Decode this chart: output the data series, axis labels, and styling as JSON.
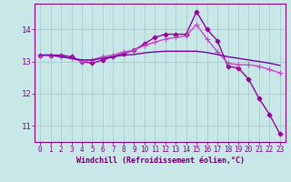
{
  "xlabel": "Windchill (Refroidissement éolien,°C)",
  "x_values": [
    0,
    1,
    2,
    3,
    4,
    5,
    6,
    7,
    8,
    9,
    10,
    11,
    12,
    13,
    14,
    15,
    16,
    17,
    18,
    19,
    20,
    21,
    22,
    23
  ],
  "lines": [
    {
      "y": [
        13.2,
        13.2,
        13.2,
        13.15,
        13.0,
        12.95,
        13.05,
        13.15,
        13.25,
        13.35,
        13.55,
        13.75,
        13.85,
        13.85,
        13.85,
        14.55,
        14.0,
        13.65,
        12.85,
        12.8,
        12.45,
        11.85,
        11.35,
        10.75
      ],
      "color": "#990099",
      "linewidth": 1.0,
      "marker": "D",
      "markersize": 2.5,
      "markerfacecolor": "#990099"
    },
    {
      "y": [
        13.2,
        13.2,
        13.15,
        13.1,
        13.0,
        13.05,
        13.15,
        13.2,
        13.3,
        13.35,
        13.5,
        13.6,
        13.7,
        13.75,
        13.8,
        14.15,
        13.7,
        13.3,
        12.95,
        12.9,
        12.9,
        12.85,
        12.75,
        12.65
      ],
      "color": "#cc44cc",
      "linewidth": 1.0,
      "marker": "+",
      "markersize": 4,
      "markerfacecolor": "#cc44cc"
    },
    {
      "y": [
        13.2,
        13.2,
        13.15,
        13.1,
        13.05,
        13.05,
        13.1,
        13.15,
        13.2,
        13.22,
        13.27,
        13.3,
        13.32,
        13.32,
        13.32,
        13.32,
        13.28,
        13.22,
        13.15,
        13.1,
        13.05,
        13.0,
        12.95,
        12.88
      ],
      "color": "#7700aa",
      "linewidth": 1.0,
      "marker": null,
      "markersize": 0,
      "markerfacecolor": null
    }
  ],
  "ylim": [
    10.5,
    14.8
  ],
  "xlim": [
    -0.5,
    23.5
  ],
  "yticks": [
    11,
    12,
    13,
    14
  ],
  "xticks": [
    0,
    1,
    2,
    3,
    4,
    5,
    6,
    7,
    8,
    9,
    10,
    11,
    12,
    13,
    14,
    15,
    16,
    17,
    18,
    19,
    20,
    21,
    22,
    23
  ],
  "bg_color": "#c8e8e8",
  "grid_color": "#a8cccc",
  "spine_color": "#880088",
  "tick_color": "#880088",
  "label_color": "#660066"
}
